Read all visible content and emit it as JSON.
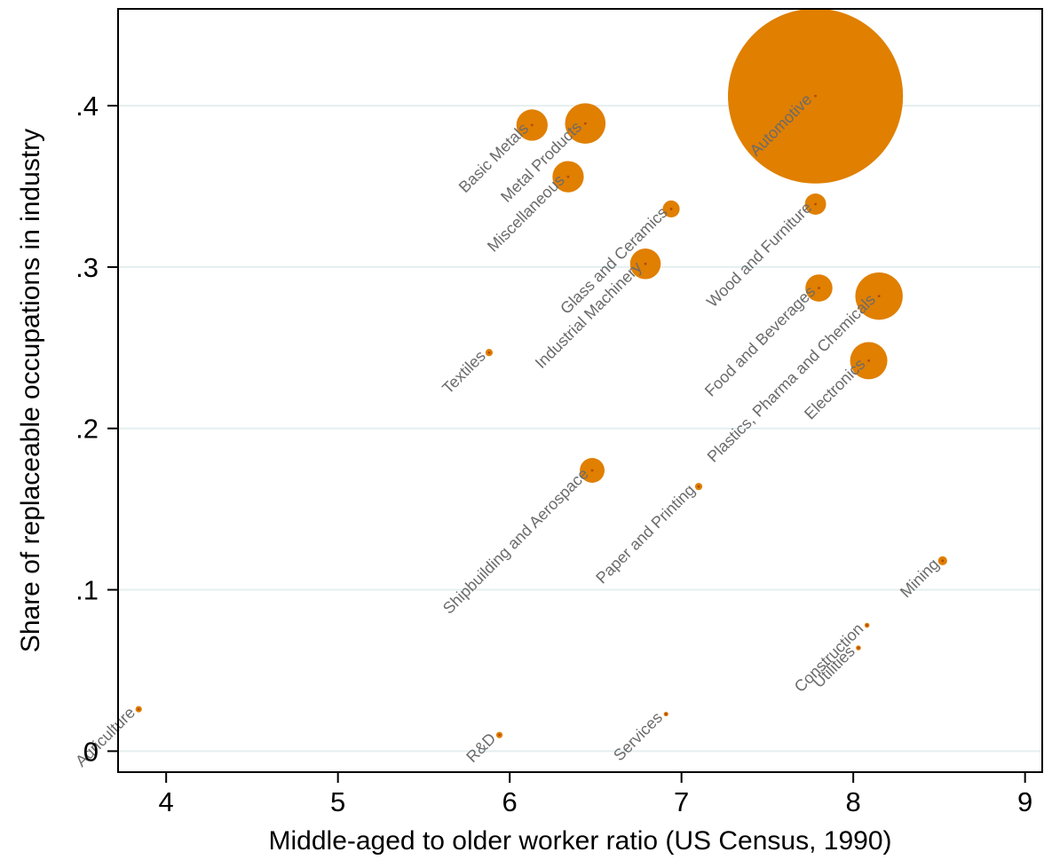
{
  "chart_data": {
    "type": "scatter",
    "title": "",
    "xlabel": "Middle-aged to older worker ratio (US Census, 1990)",
    "ylabel": "Share of replaceable occupations in industry",
    "xlim": [
      3.72,
      9.1
    ],
    "ylim": [
      -0.013,
      0.46
    ],
    "xticks": [
      4,
      5,
      6,
      7,
      8,
      9
    ],
    "xtick_labels": [
      "4",
      "5",
      "6",
      "7",
      "8",
      "9"
    ],
    "yticks": [
      0,
      0.1,
      0.2,
      0.3,
      0.4
    ],
    "ytick_labels": [
      "0",
      ".1",
      ".2",
      ".3",
      ".4"
    ],
    "grid": "horizontal",
    "legend": "none",
    "marker_color": "#E07F00",
    "center_dot_color": "#B24A12",
    "label_color": "#6b6b6b",
    "gridline_color": "#E4EFEF",
    "size_note": "bubble area proportional to relative size (unitless)",
    "points": [
      {
        "label": "Agriculture",
        "x": 3.84,
        "y": 0.026,
        "size": 1.0
      },
      {
        "label": "R&D",
        "x": 5.94,
        "y": 0.01,
        "size": 1.0
      },
      {
        "label": "Services",
        "x": 6.91,
        "y": 0.023,
        "size": 0.05
      },
      {
        "label": "Textiles",
        "x": 5.88,
        "y": 0.247,
        "size": 1.3
      },
      {
        "label": "Basic Metals",
        "x": 6.13,
        "y": 0.388,
        "size": 24
      },
      {
        "label": "Metal Products",
        "x": 6.44,
        "y": 0.389,
        "size": 40
      },
      {
        "label": "Miscellaneous",
        "x": 6.34,
        "y": 0.356,
        "size": 24
      },
      {
        "label": "Glass and Ceramics",
        "x": 6.94,
        "y": 0.336,
        "size": 7
      },
      {
        "label": "Industrial Machinery",
        "x": 6.79,
        "y": 0.302,
        "size": 23
      },
      {
        "label": "Shipbuilding and Aerospace",
        "x": 6.48,
        "y": 0.174,
        "size": 15
      },
      {
        "label": "Paper and Printing",
        "x": 7.1,
        "y": 0.164,
        "size": 1.3
      },
      {
        "label": "Automotive",
        "x": 7.78,
        "y": 0.406,
        "size": 750
      },
      {
        "label": "Wood and Furniture",
        "x": 7.78,
        "y": 0.339,
        "size": 11
      },
      {
        "label": "Food and Beverages",
        "x": 7.8,
        "y": 0.287,
        "size": 18
      },
      {
        "label": "Plastics, Pharma and Chemicals",
        "x": 8.15,
        "y": 0.282,
        "size": 55
      },
      {
        "label": "Electronics",
        "x": 8.09,
        "y": 0.242,
        "size": 34
      },
      {
        "label": "Construction",
        "x": 8.08,
        "y": 0.078,
        "size": 0.6
      },
      {
        "label": "Utilities",
        "x": 8.03,
        "y": 0.064,
        "size": 0.6
      },
      {
        "label": "Mining",
        "x": 8.52,
        "y": 0.118,
        "size": 2.0
      }
    ]
  }
}
